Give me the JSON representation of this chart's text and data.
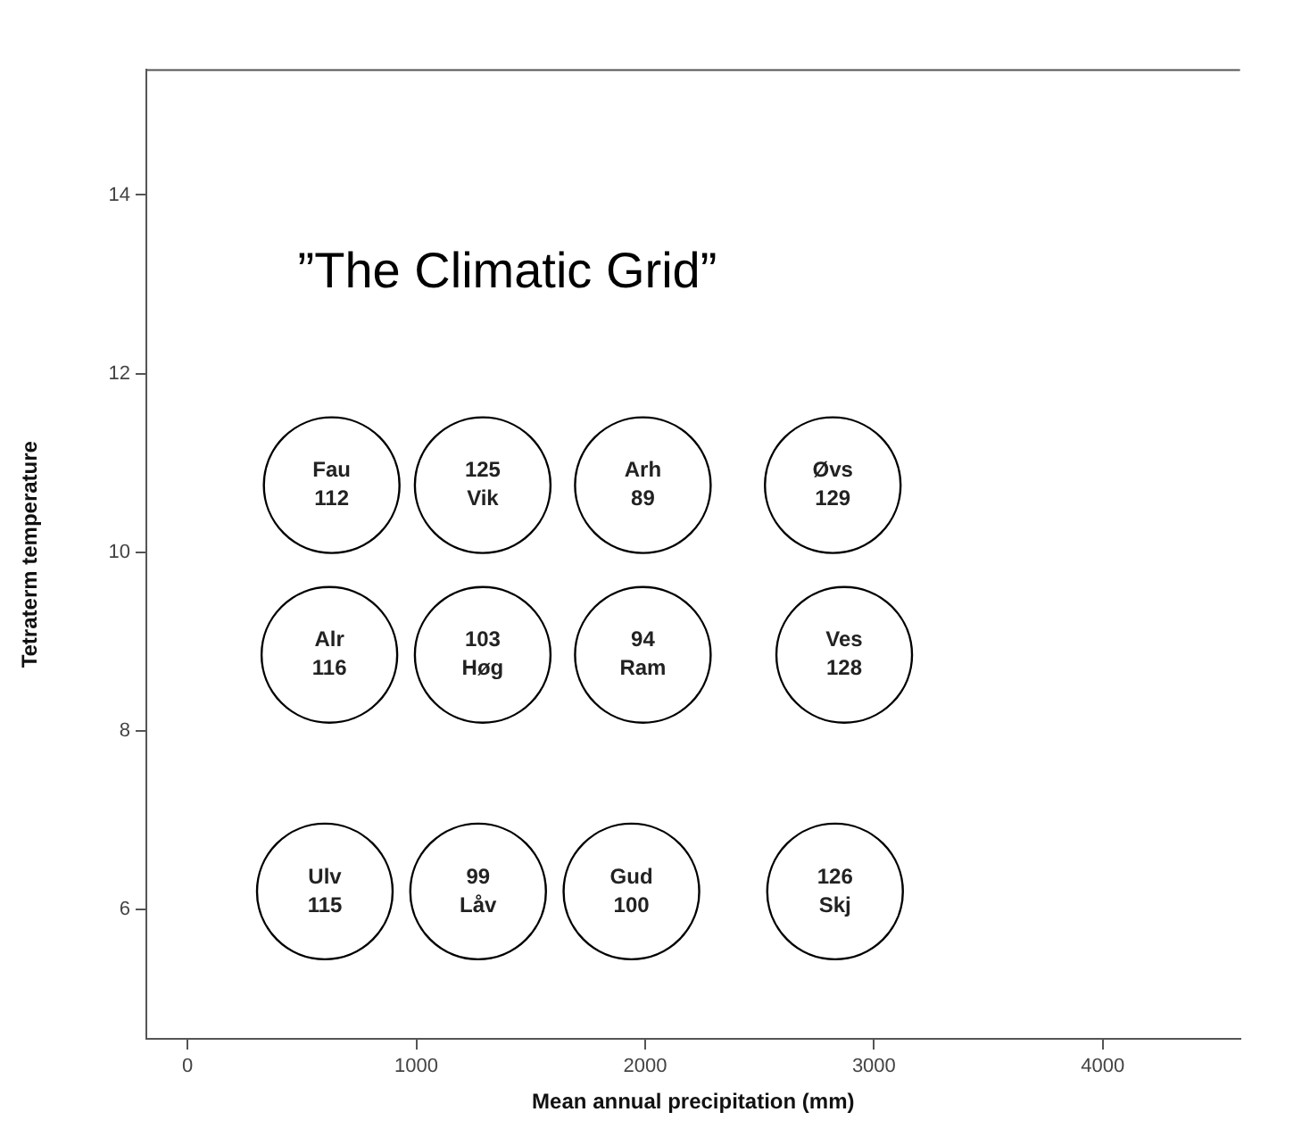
{
  "chart_data": {
    "type": "scatter",
    "title": "”The Climatic Grid”",
    "xlabel": "Mean annual precipitation (mm)",
    "ylabel": "Tetraterm temperature",
    "x": [
      630,
      1290,
      1990,
      2820,
      620,
      1290,
      1990,
      2870,
      600,
      1270,
      1940,
      2830
    ],
    "values": [
      10.75,
      10.75,
      10.75,
      10.75,
      8.85,
      8.85,
      8.85,
      8.85,
      6.2,
      6.2,
      6.2,
      6.2
    ],
    "color": "#000000",
    "marker": "circle",
    "xlim": [
      -180,
      4600
    ],
    "xticks": [
      0,
      1000,
      2000,
      3000,
      4000
    ],
    "ylim": [
      4.55,
      15.4
    ],
    "yticks": [
      6,
      8,
      10,
      12,
      14
    ],
    "grid": false,
    "legend": false,
    "annotations": [
      {
        "text": "Fau",
        "x": 630,
        "y": 10.75
      },
      {
        "text": "112",
        "x": 630,
        "y": 10.75
      },
      {
        "text": "125",
        "x": 1290,
        "y": 10.75
      },
      {
        "text": "Vik",
        "x": 1290,
        "y": 10.75
      },
      {
        "text": "Arh",
        "x": 1990,
        "y": 10.75
      },
      {
        "text": "89",
        "x": 1990,
        "y": 10.75
      },
      {
        "text": "Øvs",
        "x": 2820,
        "y": 10.75
      },
      {
        "text": "129",
        "x": 2820,
        "y": 10.75
      },
      {
        "text": "Alr",
        "x": 620,
        "y": 8.85
      },
      {
        "text": "116",
        "x": 620,
        "y": 8.85
      },
      {
        "text": "103",
        "x": 1290,
        "y": 8.85
      },
      {
        "text": "Høg",
        "x": 1290,
        "y": 8.85
      },
      {
        "text": "94",
        "x": 1990,
        "y": 8.85
      },
      {
        "text": "Ram",
        "x": 1990,
        "y": 8.85
      },
      {
        "text": "Ves",
        "x": 2870,
        "y": 8.85
      },
      {
        "text": "128",
        "x": 2870,
        "y": 8.85
      },
      {
        "text": "Ulv",
        "x": 600,
        "y": 6.2
      },
      {
        "text": "115",
        "x": 600,
        "y": 6.2
      },
      {
        "text": "99",
        "x": 1270,
        "y": 6.2
      },
      {
        "text": "Låv",
        "x": 1270,
        "y": 6.2
      },
      {
        "text": "Gud",
        "x": 1940,
        "y": 6.2
      },
      {
        "text": "100",
        "x": 1940,
        "y": 6.2
      },
      {
        "text": "126",
        "x": 2830,
        "y": 6.2
      },
      {
        "text": "Skj",
        "x": 2830,
        "y": 6.2
      }
    ]
  }
}
